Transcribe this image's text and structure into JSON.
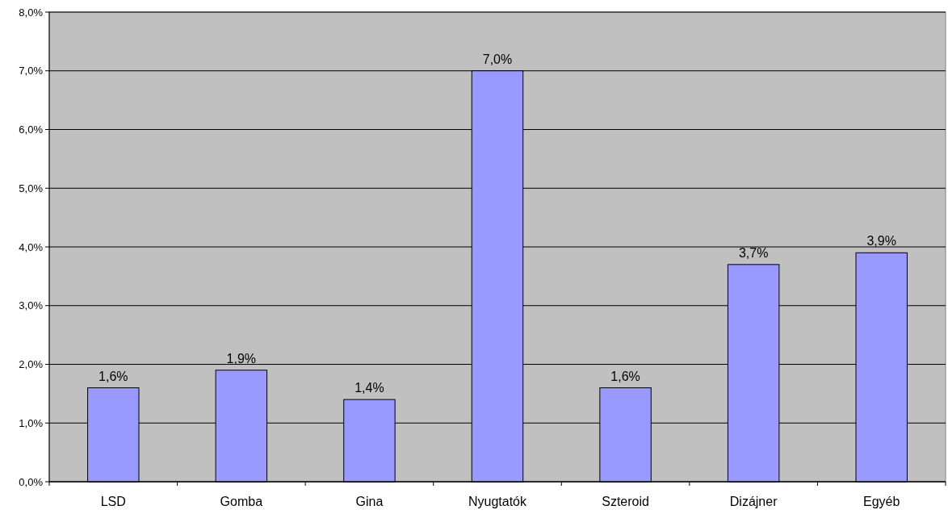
{
  "chart_data": {
    "type": "bar",
    "categories": [
      "LSD",
      "Gomba",
      "Gina",
      "Nyugtatók",
      "Szteroid",
      "Dizájner",
      "Egyéb"
    ],
    "values": [
      1.6,
      1.9,
      1.4,
      7.0,
      1.6,
      3.7,
      3.9
    ],
    "value_labels": [
      "1,6%",
      "1,9%",
      "1,4%",
      "7,0%",
      "1,6%",
      "3,7%",
      "3,9%"
    ],
    "color": "#9999ff",
    "ylim": [
      0,
      8
    ],
    "yticks": [
      {
        "value": 0,
        "label": "0,0%"
      },
      {
        "value": 1,
        "label": "1,0%"
      },
      {
        "value": 2,
        "label": "2,0%"
      },
      {
        "value": 3,
        "label": "3,0%"
      },
      {
        "value": 4,
        "label": "4,0%"
      },
      {
        "value": 5,
        "label": "5,0%"
      },
      {
        "value": 6,
        "label": "6,0%"
      },
      {
        "value": 7,
        "label": "7,0%"
      },
      {
        "value": 8,
        "label": "8,0%"
      }
    ],
    "grid": "y"
  }
}
